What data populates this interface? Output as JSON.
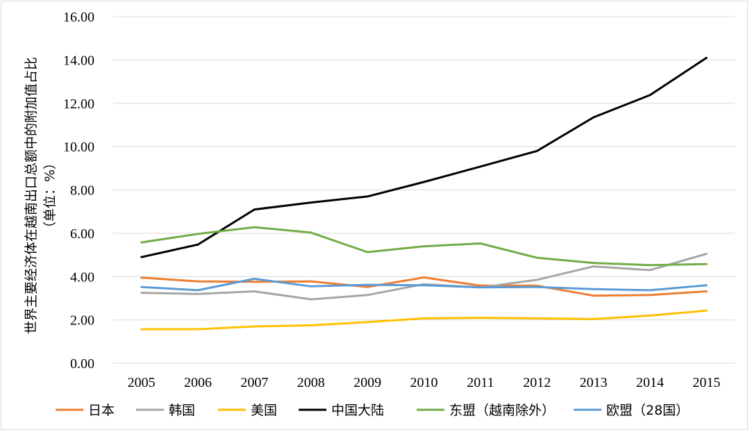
{
  "chart_data": {
    "type": "line",
    "title": "",
    "xlabel": "",
    "ylabel_lines": [
      "世界主要经济体在越南出口总额中的附加值占比",
      "（单位：%）"
    ],
    "x": [
      "2005",
      "2006",
      "2007",
      "2008",
      "2009",
      "2010",
      "2011",
      "2012",
      "2013",
      "2014",
      "2015"
    ],
    "ylim": [
      0,
      16
    ],
    "yticks": [
      "0.00",
      "2.00",
      "4.00",
      "6.00",
      "8.00",
      "10.00",
      "12.00",
      "14.00",
      "16.00"
    ],
    "grid": true,
    "legend_position": "bottom",
    "series": [
      {
        "name": "日本",
        "color": "#ED7D31",
        "values": [
          3.95,
          3.78,
          3.76,
          3.78,
          3.52,
          3.96,
          3.58,
          3.58,
          3.12,
          3.15,
          3.32
        ]
      },
      {
        "name": "韩国",
        "color": "#A5A5A5",
        "values": [
          3.25,
          3.2,
          3.32,
          2.95,
          3.15,
          3.65,
          3.5,
          3.85,
          4.47,
          4.3,
          5.05
        ]
      },
      {
        "name": "美国",
        "color": "#FFC000",
        "values": [
          1.57,
          1.57,
          1.7,
          1.75,
          1.9,
          2.07,
          2.1,
          2.07,
          2.04,
          2.2,
          2.43
        ]
      },
      {
        "name": "中国大陆",
        "color": "#000000",
        "values": [
          4.9,
          5.48,
          7.1,
          7.42,
          7.7,
          8.37,
          9.08,
          9.8,
          11.35,
          12.38,
          14.1
        ]
      },
      {
        "name": "东盟（越南除外）",
        "color": "#70AD47",
        "values": [
          5.58,
          5.97,
          6.28,
          6.03,
          5.13,
          5.4,
          5.53,
          4.87,
          4.63,
          4.53,
          4.58
        ]
      },
      {
        "name": "欧盟（28国）",
        "color": "#5B9BD5",
        "values": [
          3.52,
          3.37,
          3.9,
          3.55,
          3.62,
          3.6,
          3.5,
          3.52,
          3.42,
          3.37,
          3.6
        ]
      }
    ]
  }
}
